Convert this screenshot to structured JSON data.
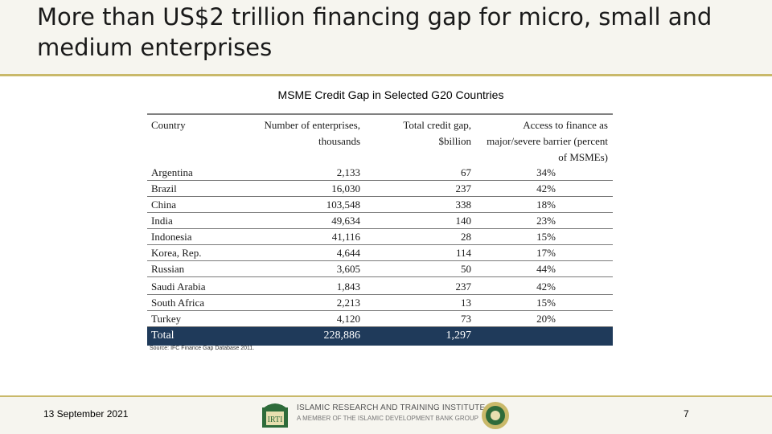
{
  "slide": {
    "title": "More than US$2 trillion financing gap for micro, small and medium enterprises",
    "table_title": "MSME Credit Gap in Selected G20 Countries",
    "source": "Source: IFC Finance Gap Database 2011.",
    "date": "13 September 2021",
    "page_number": "7"
  },
  "footer": {
    "org_name": "ISLAMIC RESEARCH AND TRAINING INSTITUTE",
    "org_subtitle": "A MEMBER OF THE ISLAMIC DEVELOPMENT BANK GROUP",
    "logo_text": "IRTI"
  },
  "table": {
    "headers": {
      "country": "Country",
      "enterprises": "Number of enterprises, thousands",
      "credit_gap": "Total credit gap, $billion",
      "access": "Access to finance as major/severe barrier (percent of MSMEs)"
    },
    "rows": [
      {
        "country": "Argentina",
        "enterprises": "2,133",
        "credit_gap": "67",
        "access": "34%"
      },
      {
        "country": "Brazil",
        "enterprises": "16,030",
        "credit_gap": "237",
        "access": "42%"
      },
      {
        "country": "China",
        "enterprises": "103,548",
        "credit_gap": "338",
        "access": "18%"
      },
      {
        "country": "India",
        "enterprises": "49,634",
        "credit_gap": "140",
        "access": "23%"
      },
      {
        "country": "Indonesia",
        "enterprises": "41,116",
        "credit_gap": "28",
        "access": "15%"
      },
      {
        "country": "Korea, Rep.",
        "enterprises": "4,644",
        "credit_gap": "114",
        "access": "17%"
      },
      {
        "country": "Russian",
        "enterprises": "3,605",
        "credit_gap": "50",
        "access": "44%"
      },
      {
        "country": "Saudi Arabia",
        "enterprises": "1,843",
        "credit_gap": "237",
        "access": "42%"
      },
      {
        "country": "South Africa",
        "enterprises": "2,213",
        "credit_gap": "13",
        "access": "15%"
      },
      {
        "country": "Turkey",
        "enterprises": "4,120",
        "credit_gap": "73",
        "access": "20%"
      }
    ],
    "total": {
      "country": "Total",
      "enterprises": "228,886",
      "credit_gap": "1,297",
      "access": ""
    }
  }
}
